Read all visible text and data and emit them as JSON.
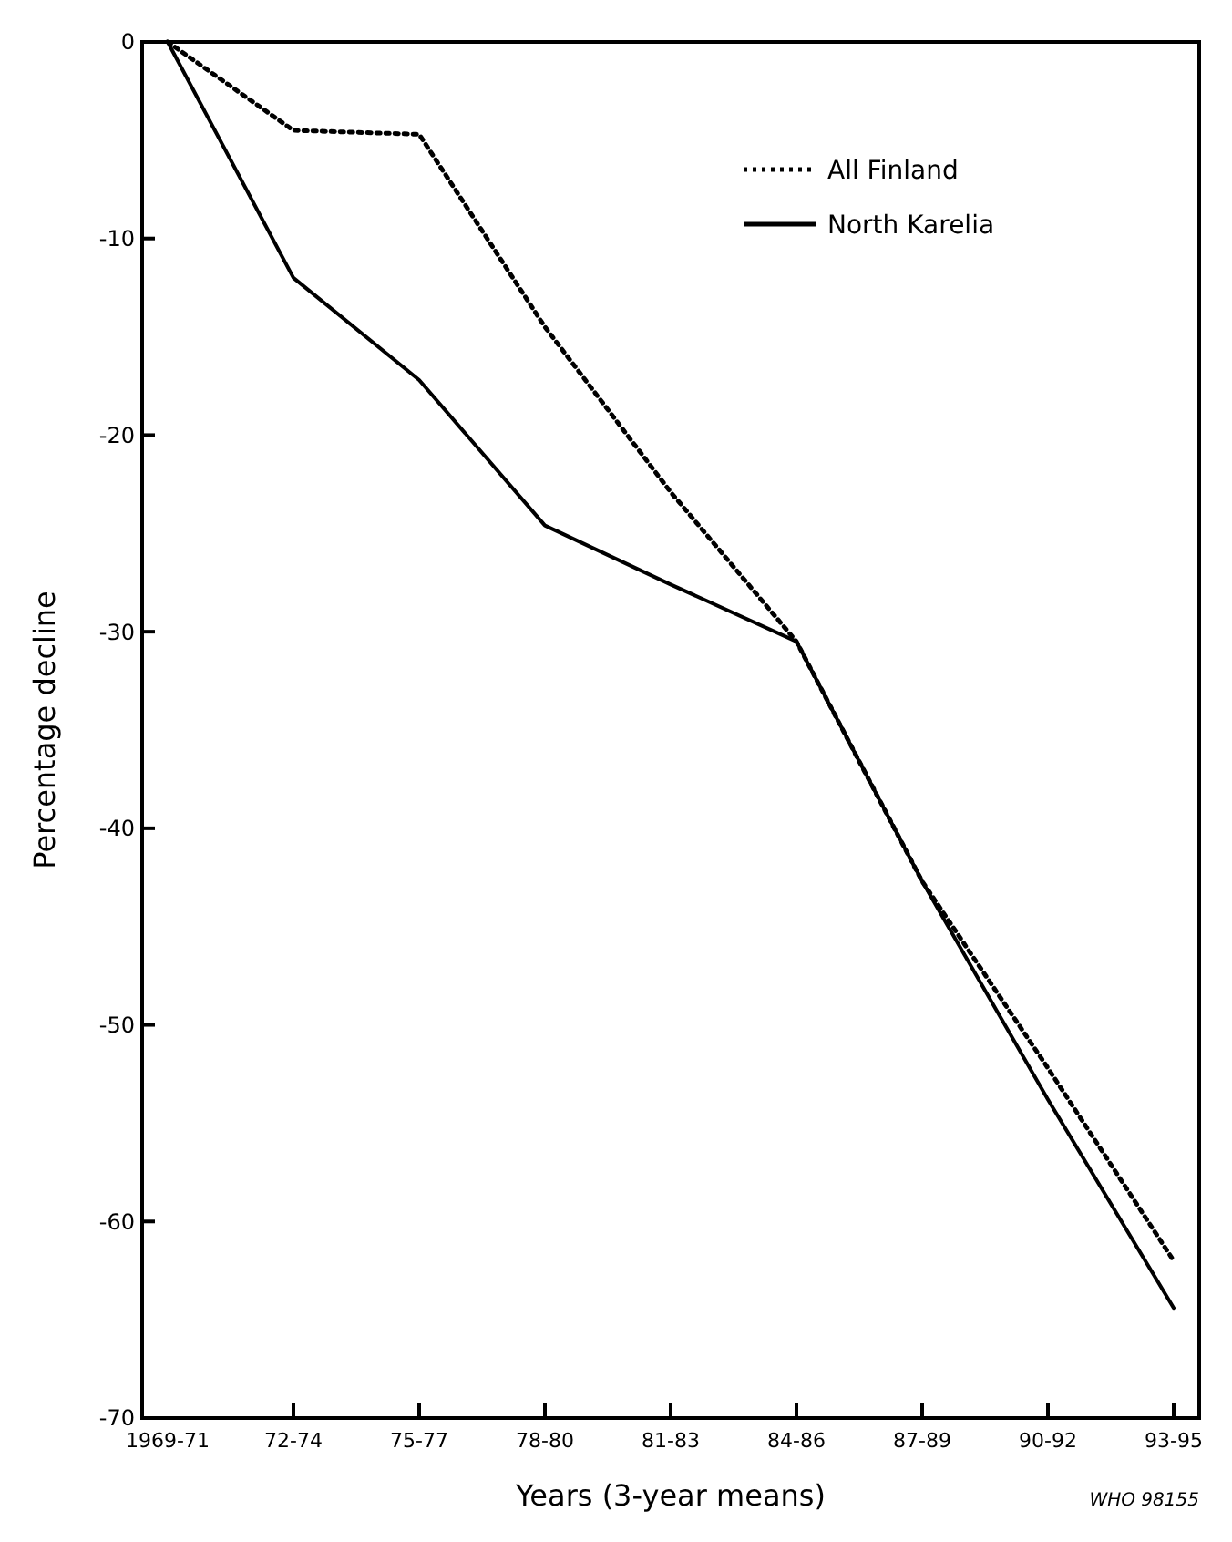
{
  "chart_data": {
    "type": "line",
    "xlabel": "Years (3-year means)",
    "ylabel": "Percentage decline",
    "categories": [
      "1969-71",
      "72-74",
      "75-77",
      "78-80",
      "81-83",
      "84-86",
      "87-89",
      "90-92",
      "93-95"
    ],
    "series": [
      {
        "name": "All Finland",
        "color": "#000000",
        "line_style": "dotted",
        "values": [
          0,
          -4.5,
          -4.7,
          -14.5,
          -22.9,
          -30.5,
          -42.7,
          -52.2,
          -62
        ]
      },
      {
        "name": "North Karelia",
        "color": "#000000",
        "line_style": "solid",
        "values": [
          0,
          -12,
          -17.2,
          -24.6,
          -27.6,
          -30.5,
          -42.7,
          -53.8,
          -64.4
        ]
      }
    ],
    "ylim": [
      -70,
      0
    ],
    "yticks": [
      0,
      -10,
      -20,
      -30,
      -40,
      -50,
      -60,
      -70
    ],
    "grid": false,
    "legend": "top right",
    "annotations": [
      "WHO 98155"
    ]
  }
}
